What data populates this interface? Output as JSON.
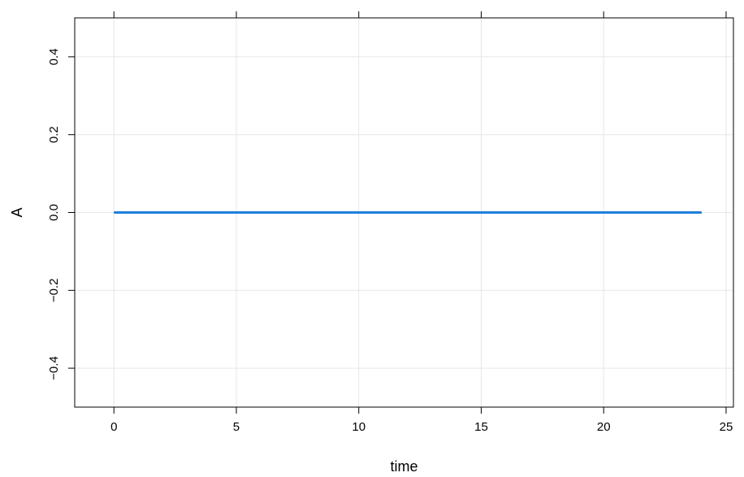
{
  "chart_data": {
    "type": "line",
    "title": "",
    "xlabel": "time",
    "ylabel": "A",
    "xlim": [
      -1.6,
      25.3
    ],
    "ylim": [
      -0.5,
      0.5
    ],
    "xticks": [
      0,
      5,
      10,
      15,
      20,
      25
    ],
    "yticks": [
      -0.4,
      -0.2,
      0.0,
      0.2,
      0.4
    ],
    "xtick_labels": [
      "0",
      "5",
      "10",
      "15",
      "20",
      "25"
    ],
    "ytick_labels": [
      "−0.4",
      "−0.2",
      "0.0",
      "0.2",
      "0.4"
    ],
    "grid": true,
    "series": [
      {
        "x": [
          0,
          24
        ],
        "y": [
          0,
          0
        ],
        "color": "#1f7fdc"
      }
    ]
  }
}
